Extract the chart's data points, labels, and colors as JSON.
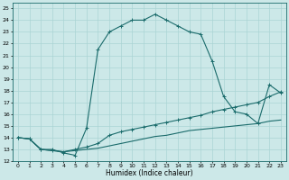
{
  "xlabel": "Humidex (Indice chaleur)",
  "background_color": "#cce8e8",
  "line_color": "#1a6b6b",
  "grid_color": "#aad4d4",
  "xlim": [
    -0.5,
    23.5
  ],
  "ylim": [
    12,
    25.5
  ],
  "xticks": [
    0,
    1,
    2,
    3,
    4,
    5,
    6,
    7,
    8,
    9,
    10,
    11,
    12,
    13,
    14,
    15,
    16,
    17,
    18,
    19,
    20,
    21,
    22,
    23
  ],
  "yticks": [
    12,
    13,
    14,
    15,
    16,
    17,
    18,
    19,
    20,
    21,
    22,
    23,
    24,
    25
  ],
  "line1_x": [
    0,
    1,
    2,
    3,
    4,
    5,
    6,
    7,
    8,
    9,
    10,
    11,
    12,
    13,
    14,
    15,
    16,
    17,
    18,
    19,
    20,
    21,
    22,
    23
  ],
  "line1_y": [
    14,
    13.9,
    13,
    13,
    12.7,
    12.5,
    14.8,
    21.5,
    23,
    23.5,
    24,
    24,
    24.5,
    24,
    23.5,
    23,
    22.8,
    20.5,
    17.5,
    16.2,
    16.0,
    15.2,
    18.5,
    17.8
  ],
  "line2_x": [
    0,
    1,
    2,
    3,
    4,
    5,
    6,
    7,
    8,
    9,
    10,
    11,
    12,
    13,
    14,
    15,
    16,
    17,
    18,
    19,
    20,
    21,
    22,
    23
  ],
  "line2_y": [
    14,
    13.9,
    13,
    12.9,
    12.8,
    13.0,
    13.2,
    13.5,
    14.2,
    14.5,
    14.7,
    14.9,
    15.1,
    15.3,
    15.5,
    15.7,
    15.9,
    16.2,
    16.4,
    16.6,
    16.8,
    17.0,
    17.5,
    17.9
  ],
  "line3_x": [
    0,
    1,
    2,
    3,
    4,
    5,
    6,
    7,
    8,
    9,
    10,
    11,
    12,
    13,
    14,
    15,
    16,
    17,
    18,
    19,
    20,
    21,
    22,
    23
  ],
  "line3_y": [
    14,
    13.9,
    13,
    12.9,
    12.8,
    12.9,
    13.0,
    13.1,
    13.3,
    13.5,
    13.7,
    13.9,
    14.1,
    14.2,
    14.4,
    14.6,
    14.7,
    14.8,
    14.9,
    15.0,
    15.1,
    15.2,
    15.4,
    15.5
  ]
}
